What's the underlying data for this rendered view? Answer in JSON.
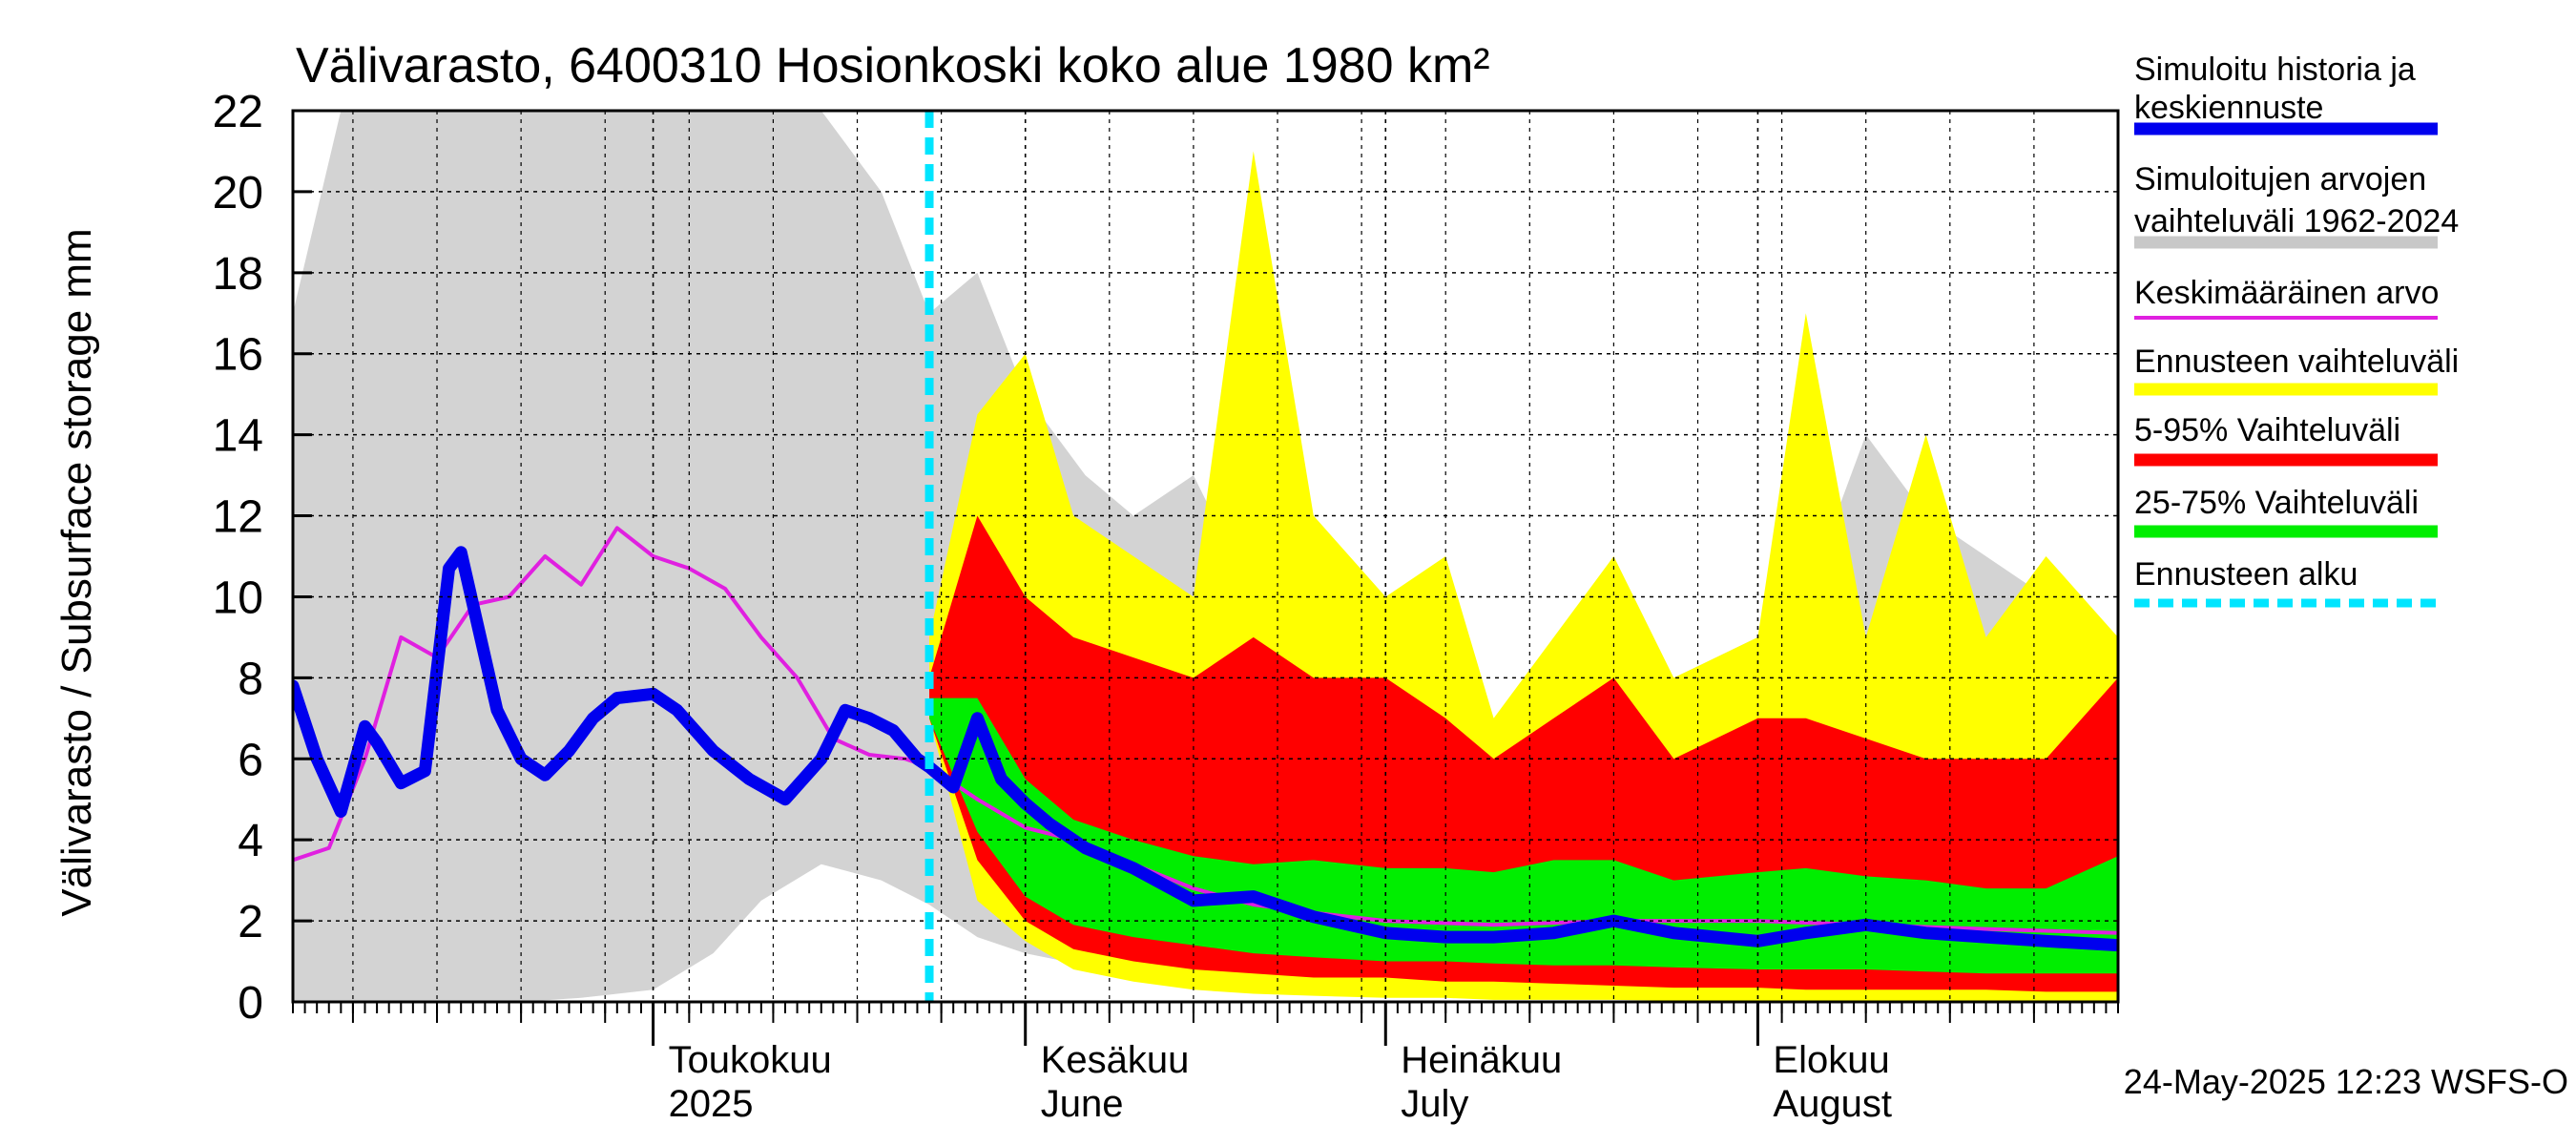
{
  "chart_data": {
    "type": "area",
    "title": "Välivarasto, 6400310 Hosionkoski koko alue 1980 km²",
    "ylabel": "Välivarasto / Subsurface storage  mm",
    "ylim": [
      0,
      22
    ],
    "yticks": [
      0,
      2,
      4,
      6,
      8,
      10,
      12,
      14,
      16,
      18,
      20,
      22
    ],
    "xlim": [
      "2025-04-01",
      "2025-08-31"
    ],
    "grid": true,
    "legend_position": "right",
    "month_labels": [
      {
        "date": "2025-05-01",
        "line1": "Toukokuu",
        "line2": "2025"
      },
      {
        "date": "2025-06-01",
        "line1": "Kesäkuu",
        "line2": "June"
      },
      {
        "date": "2025-07-01",
        "line1": "Heinäkuu",
        "line2": "July"
      },
      {
        "date": "2025-08-01",
        "line1": "Elokuu",
        "line2": "August"
      }
    ],
    "forecast_start": "2025-05-24",
    "timestamp": "24-May-2025 12:23 WSFS-O",
    "legend": [
      {
        "label": "Simuloitu historia ja keskiennuste",
        "color": "#0000ee",
        "style": "thick"
      },
      {
        "label": "Simuloitujen arvojen vaihteluväli 1962-2024",
        "color": "#c8c8c8",
        "style": "thick"
      },
      {
        "label": "Keskimääräinen arvo",
        "color": "#e020e0",
        "style": "thin"
      },
      {
        "label": "Ennusteen vaihteluväli",
        "color": "#ffff00",
        "style": "thick"
      },
      {
        "label": "5-95% Vaihteluväli",
        "color": "#ff0000",
        "style": "thick"
      },
      {
        "label": "25-75% Vaihteluväli",
        "color": "#00ee00",
        "style": "thick"
      },
      {
        "label": "Ennusteen alku",
        "color": "#00e5ff",
        "style": "dashed"
      }
    ],
    "series": [
      {
        "name": "Simuloitujen arvojen vaihteluväli 1962-2024",
        "kind": "band",
        "color": "#d3d3d3",
        "x": [
          "2025-04-01",
          "2025-04-05",
          "2025-04-08",
          "2025-04-12",
          "2025-04-16",
          "2025-04-20",
          "2025-04-25",
          "2025-05-01",
          "2025-05-06",
          "2025-05-10",
          "2025-05-15",
          "2025-05-20",
          "2025-05-24",
          "2025-05-28",
          "2025-06-01",
          "2025-06-06",
          "2025-06-10",
          "2025-06-15",
          "2025-06-20",
          "2025-06-25",
          "2025-07-01",
          "2025-07-06",
          "2025-07-10",
          "2025-07-15",
          "2025-07-20",
          "2025-07-25",
          "2025-08-01",
          "2025-08-05",
          "2025-08-10",
          "2025-08-15",
          "2025-08-20",
          "2025-08-25",
          "2025-08-31"
        ],
        "high": [
          17,
          22,
          22,
          22,
          22,
          22,
          22,
          22,
          22,
          22,
          22,
          20,
          17,
          18,
          15,
          13,
          12,
          13,
          10,
          9,
          9,
          8,
          7,
          8,
          9,
          8,
          9,
          10,
          14,
          12,
          11,
          10,
          9
        ],
        "low": [
          0,
          0,
          0,
          0,
          0,
          0,
          0.1,
          0.3,
          1.2,
          2.5,
          3.4,
          3.0,
          2.4,
          1.6,
          1.2,
          0.9,
          0.8,
          0.7,
          0.6,
          0.5,
          0.5,
          0.4,
          0.4,
          0.35,
          0.3,
          0.3,
          0.25,
          0.2,
          0.2,
          0.15,
          0.15,
          0.1,
          0.1
        ]
      },
      {
        "name": "Ennusteen vaihteluväli",
        "kind": "band",
        "color": "#ffff00",
        "x": [
          "2025-05-24",
          "2025-05-28",
          "2025-06-01",
          "2025-06-05",
          "2025-06-10",
          "2025-06-15",
          "2025-06-20",
          "2025-06-25",
          "2025-07-01",
          "2025-07-06",
          "2025-07-10",
          "2025-07-15",
          "2025-07-20",
          "2025-07-25",
          "2025-08-01",
          "2025-08-05",
          "2025-08-10",
          "2025-08-15",
          "2025-08-20",
          "2025-08-25",
          "2025-08-31"
        ],
        "high": [
          9,
          14.5,
          16,
          12,
          11,
          10,
          21,
          12,
          10,
          11,
          7,
          9,
          11,
          8,
          9,
          17,
          9,
          14,
          9,
          11,
          9
        ],
        "low": [
          7,
          2.5,
          1.5,
          0.8,
          0.5,
          0.3,
          0.2,
          0.15,
          0.1,
          0.1,
          0.05,
          0.05,
          0.05,
          0.03,
          0.03,
          0.02,
          0.02,
          0.02,
          0.02,
          0.01,
          0.01
        ]
      },
      {
        "name": "5-95% Vaihteluväli",
        "kind": "band",
        "color": "#ff0000",
        "x": [
          "2025-05-24",
          "2025-05-28",
          "2025-06-01",
          "2025-06-05",
          "2025-06-10",
          "2025-06-15",
          "2025-06-20",
          "2025-06-25",
          "2025-07-01",
          "2025-07-06",
          "2025-07-10",
          "2025-07-15",
          "2025-07-20",
          "2025-07-25",
          "2025-08-01",
          "2025-08-05",
          "2025-08-10",
          "2025-08-15",
          "2025-08-20",
          "2025-08-25",
          "2025-08-31"
        ],
        "high": [
          8,
          12,
          10,
          9,
          8.5,
          8,
          9,
          8,
          8,
          7,
          6,
          7,
          8,
          6,
          7,
          7,
          6.5,
          6,
          6,
          6,
          8
        ],
        "low": [
          7,
          3.5,
          2.0,
          1.3,
          1.0,
          0.8,
          0.7,
          0.6,
          0.6,
          0.5,
          0.5,
          0.45,
          0.4,
          0.35,
          0.35,
          0.3,
          0.3,
          0.3,
          0.3,
          0.25,
          0.25
        ]
      },
      {
        "name": "25-75% Vaihteluväli",
        "kind": "band",
        "color": "#00ee00",
        "x": [
          "2025-05-24",
          "2025-05-28",
          "2025-06-01",
          "2025-06-05",
          "2025-06-10",
          "2025-06-15",
          "2025-06-20",
          "2025-06-25",
          "2025-07-01",
          "2025-07-06",
          "2025-07-10",
          "2025-07-15",
          "2025-07-20",
          "2025-07-25",
          "2025-08-01",
          "2025-08-05",
          "2025-08-10",
          "2025-08-15",
          "2025-08-20",
          "2025-08-25",
          "2025-08-31"
        ],
        "high": [
          7.5,
          7.5,
          5.5,
          4.5,
          4,
          3.6,
          3.4,
          3.5,
          3.3,
          3.3,
          3.2,
          3.5,
          3.5,
          3.0,
          3.2,
          3.3,
          3.1,
          3.0,
          2.8,
          2.8,
          3.6
        ],
        "low": [
          7,
          4.2,
          2.6,
          1.9,
          1.6,
          1.4,
          1.2,
          1.1,
          1.0,
          1.0,
          0.95,
          0.9,
          0.9,
          0.85,
          0.8,
          0.8,
          0.8,
          0.75,
          0.7,
          0.7,
          0.7
        ]
      },
      {
        "name": "Keskimääräinen arvo",
        "kind": "line",
        "color": "#e020e0",
        "x": [
          "2025-04-01",
          "2025-04-04",
          "2025-04-07",
          "2025-04-10",
          "2025-04-13",
          "2025-04-16",
          "2025-04-19",
          "2025-04-22",
          "2025-04-25",
          "2025-04-28",
          "2025-05-01",
          "2025-05-04",
          "2025-05-07",
          "2025-05-10",
          "2025-05-13",
          "2025-05-16",
          "2025-05-19",
          "2025-05-22",
          "2025-05-24",
          "2025-05-28",
          "2025-06-01",
          "2025-06-05",
          "2025-06-10",
          "2025-06-15",
          "2025-06-20",
          "2025-06-25",
          "2025-07-01",
          "2025-07-10",
          "2025-07-20",
          "2025-08-01",
          "2025-08-10",
          "2025-08-20",
          "2025-08-31"
        ],
        "y": [
          3.5,
          3.8,
          6.0,
          9.0,
          8.5,
          9.8,
          10.0,
          11.0,
          10.3,
          11.7,
          11.0,
          10.7,
          10.2,
          9.0,
          8.0,
          6.5,
          6.1,
          6.0,
          5.8,
          5.0,
          4.3,
          4.0,
          3.4,
          2.8,
          2.4,
          2.2,
          2.0,
          1.9,
          2.0,
          2.0,
          1.9,
          1.8,
          1.7
        ]
      },
      {
        "name": "Simuloitu historia ja keskiennuste",
        "kind": "line",
        "color": "#0000ee",
        "x": [
          "2025-04-01",
          "2025-04-03",
          "2025-04-05",
          "2025-04-07",
          "2025-04-08",
          "2025-04-10",
          "2025-04-12",
          "2025-04-14",
          "2025-04-15",
          "2025-04-17",
          "2025-04-18",
          "2025-04-20",
          "2025-04-22",
          "2025-04-24",
          "2025-04-26",
          "2025-04-28",
          "2025-05-01",
          "2025-05-03",
          "2025-05-06",
          "2025-05-09",
          "2025-05-12",
          "2025-05-15",
          "2025-05-17",
          "2025-05-19",
          "2025-05-21",
          "2025-05-23",
          "2025-05-24",
          "2025-05-26",
          "2025-05-28",
          "2025-05-30",
          "2025-06-01",
          "2025-06-03",
          "2025-06-06",
          "2025-06-10",
          "2025-06-15",
          "2025-06-20",
          "2025-06-25",
          "2025-07-01",
          "2025-07-06",
          "2025-07-10",
          "2025-07-15",
          "2025-07-20",
          "2025-07-25",
          "2025-08-01",
          "2025-08-05",
          "2025-08-10",
          "2025-08-15",
          "2025-08-20",
          "2025-08-25",
          "2025-08-31"
        ],
        "y": [
          7.8,
          6.0,
          4.7,
          6.8,
          6.4,
          5.4,
          5.7,
          10.7,
          11.1,
          8.5,
          7.2,
          6.0,
          5.6,
          6.2,
          7.0,
          7.5,
          7.6,
          7.2,
          6.2,
          5.5,
          5.0,
          6.0,
          7.2,
          7.0,
          6.7,
          6.0,
          5.8,
          5.3,
          7.0,
          5.5,
          4.9,
          4.4,
          3.8,
          3.3,
          2.5,
          2.6,
          2.1,
          1.7,
          1.6,
          1.6,
          1.7,
          2.0,
          1.7,
          1.5,
          1.7,
          1.9,
          1.7,
          1.6,
          1.5,
          1.4
        ]
      }
    ]
  }
}
